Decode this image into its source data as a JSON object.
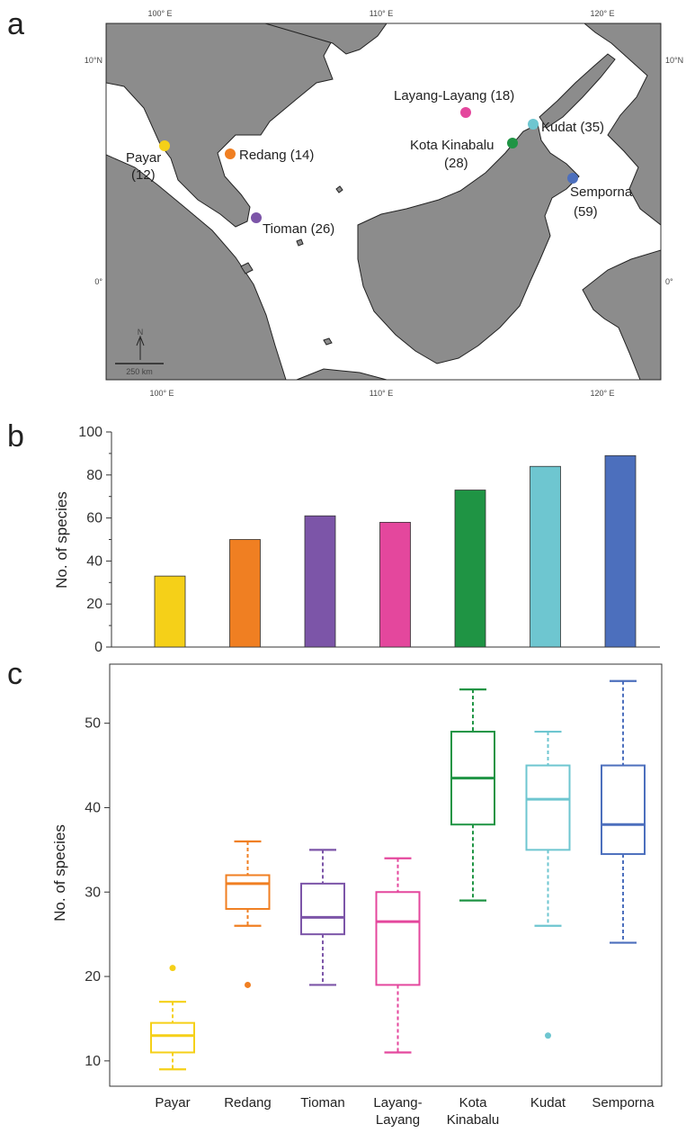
{
  "panels": {
    "a": "a",
    "b": "b",
    "c": "c"
  },
  "map": {
    "lon_labels": [
      "100° E",
      "110° E",
      "120° E"
    ],
    "lat_labels": [
      "10°N",
      "0°"
    ],
    "scale_bar": "250 km",
    "north": "N",
    "sites": [
      {
        "key": "payar",
        "label": "Payar",
        "count": "(12)",
        "color": "#f5d018"
      },
      {
        "key": "redang",
        "label": "Redang (14)",
        "count": "",
        "color": "#f07f22"
      },
      {
        "key": "tioman",
        "label": "Tioman (26)",
        "count": "",
        "color": "#7c55a8"
      },
      {
        "key": "layang",
        "label": "Layang-Layang (18)",
        "count": "",
        "color": "#e4479d"
      },
      {
        "key": "kota",
        "label": "Kota Kinabalu",
        "count": "(28)",
        "color": "#1f9444"
      },
      {
        "key": "kudat",
        "label": "Kudat (35)",
        "count": "",
        "color": "#6ec6d0"
      },
      {
        "key": "semporna",
        "label": "Semporna",
        "count": "(59)",
        "color": "#4c6fbd"
      }
    ]
  },
  "chart_data": [
    {
      "type": "bar",
      "ylabel": "No. of species",
      "ylim": [
        0,
        100
      ],
      "yticks": [
        "0",
        "20",
        "40",
        "60",
        "80",
        "100"
      ],
      "categories": [
        "Payar",
        "Redang",
        "Tioman",
        "Layang-Layang",
        "Kota Kinabalu",
        "Kudat",
        "Semporna"
      ],
      "values": [
        33,
        50,
        61,
        58,
        73,
        84,
        89
      ],
      "colors": [
        "#f5d018",
        "#f07f22",
        "#7c55a8",
        "#e4479d",
        "#1f9444",
        "#6ec6d0",
        "#4c6fbd"
      ]
    },
    {
      "type": "box",
      "ylabel": "No. of species",
      "ylim": [
        7,
        57
      ],
      "yticks": [
        "10",
        "20",
        "30",
        "40",
        "50"
      ],
      "category_labels": [
        [
          "Payar"
        ],
        [
          "Redang"
        ],
        [
          "Tioman"
        ],
        [
          "Layang-",
          "Layang"
        ],
        [
          "Kota",
          "Kinabalu"
        ],
        [
          "Kudat"
        ],
        [
          "Semporna"
        ]
      ],
      "boxes": [
        {
          "min": 9,
          "q1": 11,
          "median": 13,
          "q3": 14.5,
          "max": 17,
          "outliers": [
            21
          ]
        },
        {
          "min": 26,
          "q1": 28,
          "median": 31,
          "q3": 32,
          "max": 36,
          "outliers": [
            19
          ]
        },
        {
          "min": 19,
          "q1": 25,
          "median": 27,
          "q3": 31,
          "max": 35,
          "outliers": []
        },
        {
          "min": 11,
          "q1": 19,
          "median": 26.5,
          "q3": 30,
          "max": 34,
          "outliers": []
        },
        {
          "min": 29,
          "q1": 38,
          "median": 43.5,
          "q3": 49,
          "max": 54,
          "outliers": []
        },
        {
          "min": 26,
          "q1": 35,
          "median": 41,
          "q3": 45,
          "max": 49,
          "outliers": [
            13
          ]
        },
        {
          "min": 24,
          "q1": 34.5,
          "median": 38,
          "q3": 45,
          "max": 55,
          "outliers": []
        }
      ],
      "colors": [
        "#f5d018",
        "#f07f22",
        "#7c55a8",
        "#e4479d",
        "#1f9444",
        "#6ec6d0",
        "#4c6fbd"
      ]
    }
  ]
}
